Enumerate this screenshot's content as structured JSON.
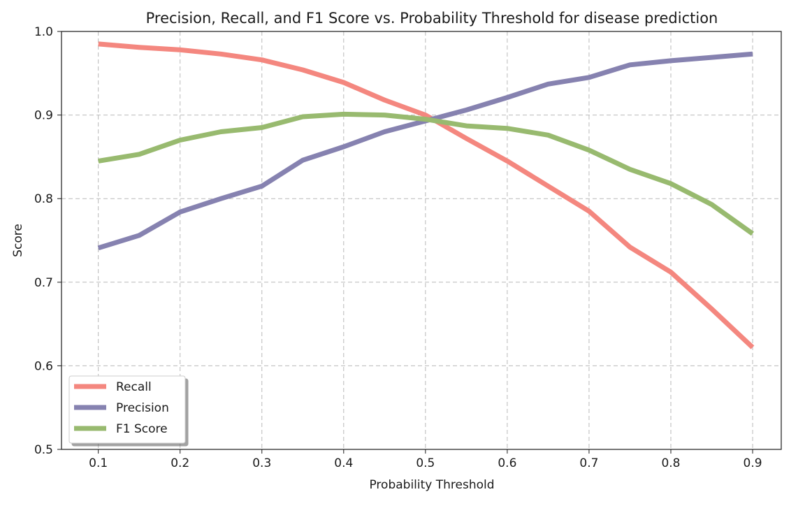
{
  "chart_data": {
    "type": "line",
    "title": "Precision, Recall, and F1 Score vs. Probability Threshold for disease prediction",
    "xlabel": "Probability Threshold",
    "ylabel": "Score",
    "xlim": [
      0.055,
      0.935
    ],
    "ylim": [
      0.5,
      1.0
    ],
    "xticks": [
      0.1,
      0.2,
      0.3,
      0.4,
      0.5,
      0.6,
      0.7,
      0.8,
      0.9
    ],
    "xtick_labels": [
      "0.1",
      "0.2",
      "0.3",
      "0.4",
      "0.5",
      "0.6",
      "0.7",
      "0.8",
      "0.9"
    ],
    "yticks": [
      0.5,
      0.6,
      0.7,
      0.8,
      0.9,
      1.0
    ],
    "ytick_labels": [
      "0.5",
      "0.6",
      "0.7",
      "0.8",
      "0.9",
      "1.0"
    ],
    "grid": true,
    "legend_position": "lower-left",
    "x": [
      0.1,
      0.15,
      0.2,
      0.25,
      0.3,
      0.35,
      0.4,
      0.45,
      0.5,
      0.55,
      0.6,
      0.65,
      0.7,
      0.75,
      0.8,
      0.85,
      0.9
    ],
    "series": [
      {
        "name": "Recall",
        "color": "#f4877f",
        "values": [
          0.985,
          0.981,
          0.978,
          0.973,
          0.966,
          0.954,
          0.939,
          0.918,
          0.9,
          0.872,
          0.845,
          0.815,
          0.785,
          0.742,
          0.712,
          0.668,
          0.622
        ]
      },
      {
        "name": "Precision",
        "color": "#8682b0",
        "values": [
          0.741,
          0.756,
          0.784,
          0.8,
          0.815,
          0.846,
          0.862,
          0.88,
          0.893,
          0.906,
          0.921,
          0.937,
          0.945,
          0.96,
          0.965,
          0.969,
          0.973
        ]
      },
      {
        "name": "F1 Score",
        "color": "#98ba6f",
        "values": [
          0.845,
          0.853,
          0.87,
          0.88,
          0.885,
          0.898,
          0.901,
          0.9,
          0.895,
          0.887,
          0.884,
          0.876,
          0.858,
          0.835,
          0.818,
          0.793,
          0.758
        ]
      }
    ]
  }
}
